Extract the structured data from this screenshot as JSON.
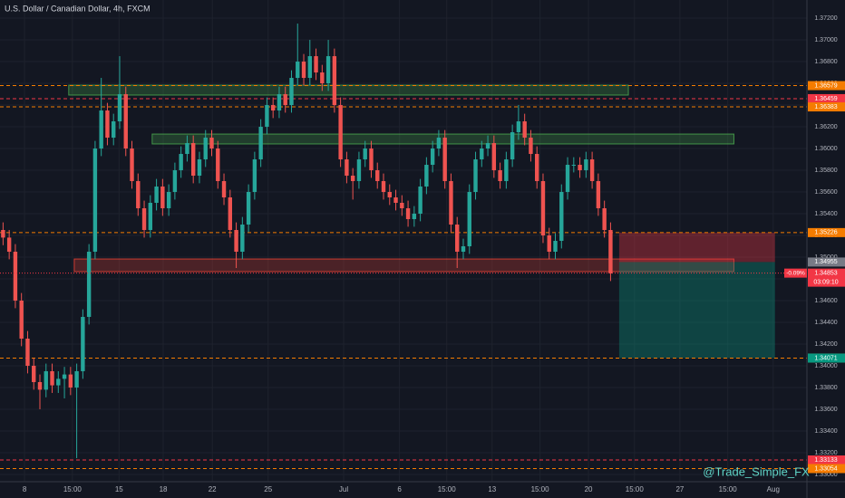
{
  "chart_data": {
    "type": "candlestick",
    "title": "U.S. Dollar / Canadian Dollar, 4h, FXCM",
    "watermark": "@Trade_Simple_FX",
    "up_color": "#26a69a",
    "down_color": "#ef5350",
    "open": [
      1.3525,
      1.3518,
      1.3505,
      1.346,
      1.3425,
      1.34,
      1.3385,
      1.3378,
      1.3395,
      1.3382,
      1.3388,
      1.3392,
      1.338,
      1.3395,
      1.3445,
      1.3505,
      1.36,
      1.3635,
      1.361,
      1.3625,
      1.365,
      1.36,
      1.357,
      1.3545,
      1.3525,
      1.355,
      1.3565,
      1.3545,
      1.356,
      1.358,
      1.3595,
      1.3605,
      1.3575,
      1.359,
      1.361,
      1.36,
      1.357,
      1.3555,
      1.3525,
      1.3505,
      1.353,
      1.356,
      1.359,
      1.362,
      1.364,
      1.3635,
      1.365,
      1.364,
      1.3665,
      1.368,
      1.3665,
      1.3685,
      1.367,
      1.366,
      1.3685,
      1.364,
      1.359,
      1.3575,
      1.357,
      1.359,
      1.36,
      1.358,
      1.357,
      1.356,
      1.3555,
      1.355,
      1.3545,
      1.3535,
      1.354,
      1.3565,
      1.3585,
      1.36,
      1.361,
      1.357,
      1.353,
      1.3505,
      1.351,
      1.356,
      1.359,
      1.36,
      1.3605,
      1.358,
      1.357,
      1.359,
      1.3615,
      1.3625,
      1.361,
      1.3595,
      1.357,
      1.352,
      1.3505,
      1.3515,
      1.356,
      1.3585,
      1.3585,
      1.358,
      1.359,
      1.357,
      1.3545,
      1.3525
    ],
    "high": [
      1.3532,
      1.3525,
      1.3512,
      1.3467,
      1.3432,
      1.3407,
      1.3392,
      1.3402,
      1.3402,
      1.3395,
      1.3399,
      1.3399,
      1.3402,
      1.3452,
      1.3512,
      1.3607,
      1.3665,
      1.3642,
      1.3632,
      1.3685,
      1.3657,
      1.3607,
      1.3577,
      1.3552,
      1.3557,
      1.3572,
      1.3572,
      1.3567,
      1.3587,
      1.3602,
      1.3612,
      1.3612,
      1.3597,
      1.3617,
      1.3617,
      1.3607,
      1.3577,
      1.3562,
      1.3532,
      1.3537,
      1.3567,
      1.3597,
      1.3627,
      1.3647,
      1.3647,
      1.3657,
      1.3657,
      1.3672,
      1.3715,
      1.3687,
      1.37,
      1.3692,
      1.3677,
      1.37,
      1.3692,
      1.3647,
      1.3597,
      1.3582,
      1.3597,
      1.3607,
      1.3607,
      1.3587,
      1.3577,
      1.3567,
      1.3562,
      1.3557,
      1.3552,
      1.3547,
      1.3572,
      1.3592,
      1.3607,
      1.3617,
      1.3617,
      1.3577,
      1.3537,
      1.3517,
      1.3567,
      1.3597,
      1.3607,
      1.3612,
      1.3612,
      1.3587,
      1.3597,
      1.3622,
      1.364,
      1.3632,
      1.3617,
      1.3602,
      1.3577,
      1.3527,
      1.3522,
      1.3567,
      1.3592,
      1.3592,
      1.3592,
      1.3597,
      1.3597,
      1.3577,
      1.3552,
      1.3532
    ],
    "low": [
      1.3511,
      1.3498,
      1.3453,
      1.3418,
      1.3393,
      1.3378,
      1.336,
      1.3371,
      1.3375,
      1.3375,
      1.337,
      1.3373,
      1.3315,
      1.3388,
      1.3438,
      1.3498,
      1.3593,
      1.3603,
      1.3603,
      1.3618,
      1.3593,
      1.3563,
      1.3538,
      1.3518,
      1.3518,
      1.3543,
      1.3538,
      1.3538,
      1.3553,
      1.3573,
      1.3588,
      1.3568,
      1.3568,
      1.3583,
      1.3593,
      1.3563,
      1.3548,
      1.3518,
      1.349,
      1.3498,
      1.3523,
      1.3553,
      1.3583,
      1.3613,
      1.3628,
      1.3628,
      1.3633,
      1.3633,
      1.3658,
      1.3658,
      1.3658,
      1.3663,
      1.3653,
      1.3653,
      1.3633,
      1.3583,
      1.3568,
      1.3553,
      1.3563,
      1.3583,
      1.3573,
      1.3563,
      1.3553,
      1.3548,
      1.3543,
      1.3538,
      1.3528,
      1.3528,
      1.3533,
      1.3558,
      1.3578,
      1.3593,
      1.3563,
      1.3523,
      1.349,
      1.3498,
      1.3503,
      1.3553,
      1.3583,
      1.3593,
      1.3573,
      1.3563,
      1.3563,
      1.3583,
      1.3608,
      1.3603,
      1.3588,
      1.3563,
      1.3513,
      1.3498,
      1.3498,
      1.3508,
      1.3553,
      1.3578,
      1.3573,
      1.3573,
      1.3563,
      1.3538,
      1.3518,
      1.3478
    ],
    "close": [
      1.3518,
      1.3505,
      1.346,
      1.3425,
      1.34,
      1.3385,
      1.3378,
      1.3395,
      1.3382,
      1.3388,
      1.3392,
      1.338,
      1.3395,
      1.3445,
      1.3505,
      1.36,
      1.3635,
      1.361,
      1.3625,
      1.365,
      1.36,
      1.357,
      1.3545,
      1.3525,
      1.355,
      1.3565,
      1.3545,
      1.356,
      1.358,
      1.3595,
      1.3605,
      1.3575,
      1.359,
      1.361,
      1.36,
      1.357,
      1.3555,
      1.3525,
      1.3505,
      1.353,
      1.356,
      1.359,
      1.362,
      1.364,
      1.3635,
      1.365,
      1.364,
      1.3665,
      1.368,
      1.3665,
      1.3685,
      1.367,
      1.366,
      1.3685,
      1.364,
      1.359,
      1.3575,
      1.357,
      1.359,
      1.36,
      1.358,
      1.357,
      1.356,
      1.3555,
      1.355,
      1.3545,
      1.3535,
      1.354,
      1.3565,
      1.3585,
      1.36,
      1.361,
      1.357,
      1.353,
      1.3505,
      1.351,
      1.356,
      1.359,
      1.36,
      1.3605,
      1.358,
      1.357,
      1.359,
      1.3615,
      1.3625,
      1.361,
      1.3595,
      1.357,
      1.352,
      1.3505,
      1.3515,
      1.356,
      1.3585,
      1.3585,
      1.358,
      1.359,
      1.357,
      1.3545,
      1.3525,
      1.3485
    ],
    "xlim": [
      0,
      131.5
    ],
    "xticks": [
      {
        "value": 4.0,
        "label": "8"
      },
      {
        "value": 11.8,
        "label": "15:00"
      },
      {
        "value": 19.4,
        "label": "15"
      },
      {
        "value": 26.6,
        "label": "18"
      },
      {
        "value": 34.6,
        "label": "22"
      },
      {
        "value": 43.7,
        "label": "25"
      },
      {
        "value": 56.0,
        "label": "Jul"
      },
      {
        "value": 65.1,
        "label": "6"
      },
      {
        "value": 72.8,
        "label": "15:00"
      },
      {
        "value": 80.2,
        "label": "13"
      },
      {
        "value": 88.0,
        "label": "15:00"
      },
      {
        "value": 95.9,
        "label": "20"
      },
      {
        "value": 103.4,
        "label": "15:00"
      },
      {
        "value": 110.8,
        "label": "27"
      },
      {
        "value": 118.6,
        "label": "15:00"
      },
      {
        "value": 126.0,
        "label": "Aug"
      }
    ],
    "ylim": [
      1.32933,
      1.37367
    ],
    "yticks": [
      {
        "value": 1.33,
        "label": "1.33000"
      },
      {
        "value": 1.332,
        "label": "1.33200"
      },
      {
        "value": 1.334,
        "label": "1.33400"
      },
      {
        "value": 1.336,
        "label": "1.33600"
      },
      {
        "value": 1.338,
        "label": "1.33800"
      },
      {
        "value": 1.34,
        "label": "1.34000"
      },
      {
        "value": 1.342,
        "label": "1.34200"
      },
      {
        "value": 1.344,
        "label": "1.34400"
      },
      {
        "value": 1.346,
        "label": "1.34600"
      },
      {
        "value": 1.348,
        "label": "1.34800"
      },
      {
        "value": 1.35,
        "label": "1.35000"
      },
      {
        "value": 1.352,
        "label": "1.35200"
      },
      {
        "value": 1.354,
        "label": "1.35400"
      },
      {
        "value": 1.356,
        "label": "1.35600"
      },
      {
        "value": 1.358,
        "label": "1.35800"
      },
      {
        "value": 1.36,
        "label": "1.36000"
      },
      {
        "value": 1.362,
        "label": "1.36200"
      },
      {
        "value": 1.364,
        "label": "1.36400"
      },
      {
        "value": 1.366,
        "label": "1.36600"
      },
      {
        "value": 1.368,
        "label": "1.36800"
      },
      {
        "value": 1.37,
        "label": "1.37000"
      },
      {
        "value": 1.372,
        "label": "1.37200"
      }
    ],
    "grid": true,
    "zones": [
      {
        "from": 11.2,
        "to": 102.4,
        "low": 1.36492,
        "high": 1.36583,
        "color": "#4caf50"
      },
      {
        "from": 24.8,
        "to": 119.6,
        "low": 1.36042,
        "high": 1.36133,
        "color": "#4caf50"
      },
      {
        "from": 12.1,
        "to": 119.6,
        "low": 1.34867,
        "high": 1.34983,
        "color": "#f44336"
      }
    ],
    "levels": [
      {
        "price": 1.36579,
        "color": "#f57c00"
      },
      {
        "price": 1.36459,
        "color": "#f23645"
      },
      {
        "price": 1.36383,
        "color": "#f57c00"
      },
      {
        "price": 1.35226,
        "color": "#f57c00"
      },
      {
        "price": 1.34071,
        "color": "#f57c00"
      },
      {
        "price": 1.33133,
        "color": "#f23645"
      },
      {
        "price": 1.33054,
        "color": "#f57c00"
      }
    ],
    "position": {
      "from": 100.9,
      "to": 126.3,
      "stop": 1.35226,
      "entry": 1.34955,
      "target": 1.34071
    },
    "last_price": 1.34853,
    "change": "-0.09%",
    "countdown": "03:09:10"
  }
}
